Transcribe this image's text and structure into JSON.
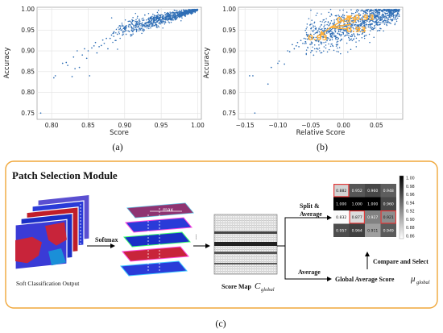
{
  "chart_data": [
    {
      "type": "scatter",
      "caption": "(a)",
      "xlabel": "Score",
      "ylabel": "Accuracy",
      "xlim": [
        0.78,
        1.005
      ],
      "ylim": [
        0.735,
        1.005
      ],
      "xticks": [
        "0.80",
        "0.85",
        "0.90",
        "0.95",
        "1.00"
      ],
      "yticks": [
        "0.75",
        "0.80",
        "0.85",
        "0.90",
        "0.95",
        "1.00"
      ],
      "grid": true,
      "color": "#2f6eb5",
      "points": [
        [
          0.785,
          0.75
        ],
        [
          0.803,
          0.835
        ],
        [
          0.805,
          0.84
        ],
        [
          0.815,
          0.87
        ],
        [
          0.82,
          0.872
        ],
        [
          0.822,
          0.865
        ],
        [
          0.828,
          0.838
        ],
        [
          0.83,
          0.885
        ],
        [
          0.832,
          0.857
        ],
        [
          0.835,
          0.9
        ],
        [
          0.838,
          0.86
        ],
        [
          0.842,
          0.89
        ],
        [
          0.845,
          0.905
        ],
        [
          0.848,
          0.882
        ],
        [
          0.85,
          0.9
        ],
        [
          0.852,
          0.84
        ],
        [
          0.855,
          0.907
        ],
        [
          0.858,
          0.912
        ],
        [
          0.86,
          0.92
        ],
        [
          0.862,
          0.895
        ],
        [
          0.865,
          0.91
        ],
        [
          0.868,
          0.913
        ],
        [
          0.87,
          0.926
        ],
        [
          0.872,
          0.918
        ],
        [
          0.875,
          0.93
        ],
        [
          0.877,
          0.905
        ],
        [
          0.88,
          0.93
        ],
        [
          0.882,
          0.938
        ],
        [
          0.885,
          0.935
        ],
        [
          0.888,
          0.925
        ],
        [
          0.89,
          0.94
        ],
        [
          0.892,
          0.945
        ],
        [
          0.895,
          0.95
        ],
        [
          0.897,
          0.938
        ],
        [
          0.9,
          0.952
        ],
        [
          0.902,
          0.94
        ]
      ]
    },
    {
      "type": "scatter",
      "caption": "(b)",
      "xlabel": "Relative Score",
      "ylabel": "Accuracy",
      "xlim": [
        -0.16,
        0.09
      ],
      "ylim": [
        0.735,
        1.005
      ],
      "xticks": [
        "−0.15",
        "−0.10",
        "−0.05",
        "0.00",
        "0.05"
      ],
      "yticks": [
        "0.75",
        "0.80",
        "0.85",
        "0.90",
        "0.95",
        "1.00"
      ],
      "grid": true,
      "color": "#2f6eb5",
      "points": [
        [
          -0.143,
          0.84
        ],
        [
          -0.138,
          0.84
        ],
        [
          -0.135,
          0.75
        ],
        [
          -0.115,
          0.82
        ],
        [
          -0.11,
          0.86
        ],
        [
          -0.1,
          0.87
        ],
        [
          -0.098,
          0.875
        ],
        [
          -0.09,
          0.868
        ],
        [
          -0.085,
          0.9
        ],
        [
          -0.082,
          0.898
        ],
        [
          -0.078,
          0.915
        ],
        [
          -0.075,
          0.905
        ],
        [
          -0.072,
          0.912
        ],
        [
          -0.07,
          0.92
        ],
        [
          -0.068,
          0.91
        ],
        [
          -0.065,
          0.925
        ],
        [
          -0.062,
          0.918
        ],
        [
          -0.06,
          0.93
        ],
        [
          -0.058,
          0.922
        ],
        [
          -0.055,
          0.935
        ],
        [
          -0.052,
          0.928
        ],
        [
          -0.05,
          0.94
        ],
        [
          -0.048,
          0.93
        ]
      ],
      "annotations": [
        "0.93",
        "0.93",
        "0.93",
        "0.93"
      ]
    }
  ],
  "captions": {
    "a": "(a)",
    "b": "(b)",
    "c": "(c)"
  },
  "module": {
    "title": "Patch Selection Module",
    "input_label": "Soft Classification Output",
    "softmax_label": "Softmax",
    "max_label": "max",
    "score_map_label": "Score Map",
    "score_map_symbol": "C",
    "score_map_sub": "global",
    "split_label_1": "Split &",
    "split_label_2": "Average",
    "average_label": "Average",
    "global_label": "Global Average Score",
    "global_symbol": "μ",
    "global_sub": "global",
    "compare_label": "Compare and Select",
    "matrix": [
      [
        "0.882",
        "0.952",
        "0.960",
        "0.948"
      ],
      [
        "1.000",
        "1.000",
        "1.000",
        "0.960"
      ],
      [
        "0.832",
        "0.877",
        "0.927",
        "0.921"
      ],
      [
        "0.957",
        "0.964",
        "0.911",
        "0.949"
      ]
    ],
    "highlighted": [
      [
        0,
        0
      ],
      [
        2,
        1
      ],
      [
        2,
        3
      ]
    ],
    "colorbar_ticks": [
      "1.00",
      "0.98",
      "0.96",
      "0.94",
      "0.92",
      "0.90",
      "0.88",
      "0.86"
    ]
  }
}
